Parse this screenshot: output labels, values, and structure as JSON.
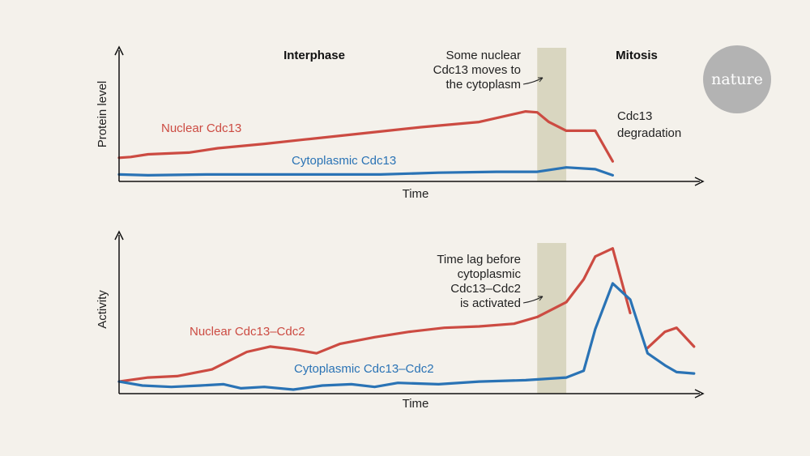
{
  "colors": {
    "background": "#f4f1eb",
    "nuclear": "#cc4b42",
    "cytoplasmic": "#2a73b5",
    "band": "#d9d6c0",
    "axis": "#111111",
    "logo": "#b3b3b3"
  },
  "logo": {
    "text": "nature"
  },
  "chart_data": [
    {
      "type": "line",
      "ylabel": "Protein level",
      "xlabel": "Time",
      "phases": [
        "Interphase",
        "Mitosis"
      ],
      "xlim": [
        0,
        100
      ],
      "ylim": [
        0,
        100
      ],
      "grid": false,
      "band": [
        72,
        77
      ],
      "annotations": [
        {
          "lines": [
            "Some nuclear",
            "Cdc13 moves to",
            "the cytoplasm"
          ],
          "points_to": "band"
        },
        {
          "lines": [
            "Cdc13",
            "degradation"
          ]
        }
      ],
      "series": [
        {
          "name": "Nuclear Cdc13",
          "color_key": "nuclear",
          "x": [
            0,
            2,
            5,
            12,
            17,
            25,
            32,
            42,
            52,
            62,
            70,
            72,
            74,
            77,
            82,
            85
          ],
          "y": [
            27,
            28,
            31,
            33,
            38,
            43,
            48,
            55,
            62,
            68,
            80,
            79,
            68,
            58,
            58,
            23
          ]
        },
        {
          "name": "Cytoplasmic Cdc13",
          "color_key": "cytoplasmic",
          "x": [
            0,
            5,
            15,
            25,
            35,
            45,
            55,
            65,
            72,
            77,
            82,
            85
          ],
          "y": [
            8,
            7,
            8,
            8,
            8,
            8,
            10,
            11,
            11,
            16,
            14,
            7
          ]
        }
      ]
    },
    {
      "type": "line",
      "ylabel": "Activity",
      "xlabel": "Time",
      "xlim": [
        0,
        100
      ],
      "ylim": [
        0,
        100
      ],
      "grid": false,
      "band": [
        72,
        77
      ],
      "annotations": [
        {
          "lines": [
            "Time lag before",
            "cytoplasmic",
            "Cdc13–Cdc2",
            "is activated"
          ],
          "points_to": "band"
        }
      ],
      "series": [
        {
          "name": "Nuclear Cdc13–Cdc2",
          "color_key": "nuclear",
          "segments": [
            {
              "x": [
                0,
                5,
                10,
                16,
                22,
                26,
                30,
                34,
                38,
                44,
                50,
                56,
                62,
                68,
                72,
                77,
                80,
                82,
                85,
                88
              ],
              "y": [
                9,
                12,
                13,
                18,
                31,
                35,
                33,
                30,
                37,
                42,
                46,
                49,
                50,
                52,
                57,
                68,
                85,
                102,
                108,
                60
              ]
            },
            {
              "x": [
                91,
                94,
                96,
                99
              ],
              "y": [
                34,
                46,
                49,
                35
              ]
            }
          ]
        },
        {
          "name": "Cytoplasmic Cdc13–Cdc2",
          "color_key": "cytoplasmic",
          "x": [
            0,
            4,
            9,
            14,
            18,
            21,
            25,
            30,
            35,
            40,
            44,
            48,
            55,
            62,
            70,
            77,
            80,
            82,
            85,
            88,
            91,
            94,
            96,
            99
          ],
          "y": [
            9,
            6,
            5,
            6,
            7,
            4,
            5,
            3,
            6,
            7,
            5,
            8,
            7,
            9,
            10,
            12,
            17,
            48,
            82,
            70,
            30,
            21,
            16,
            15
          ]
        }
      ]
    }
  ]
}
